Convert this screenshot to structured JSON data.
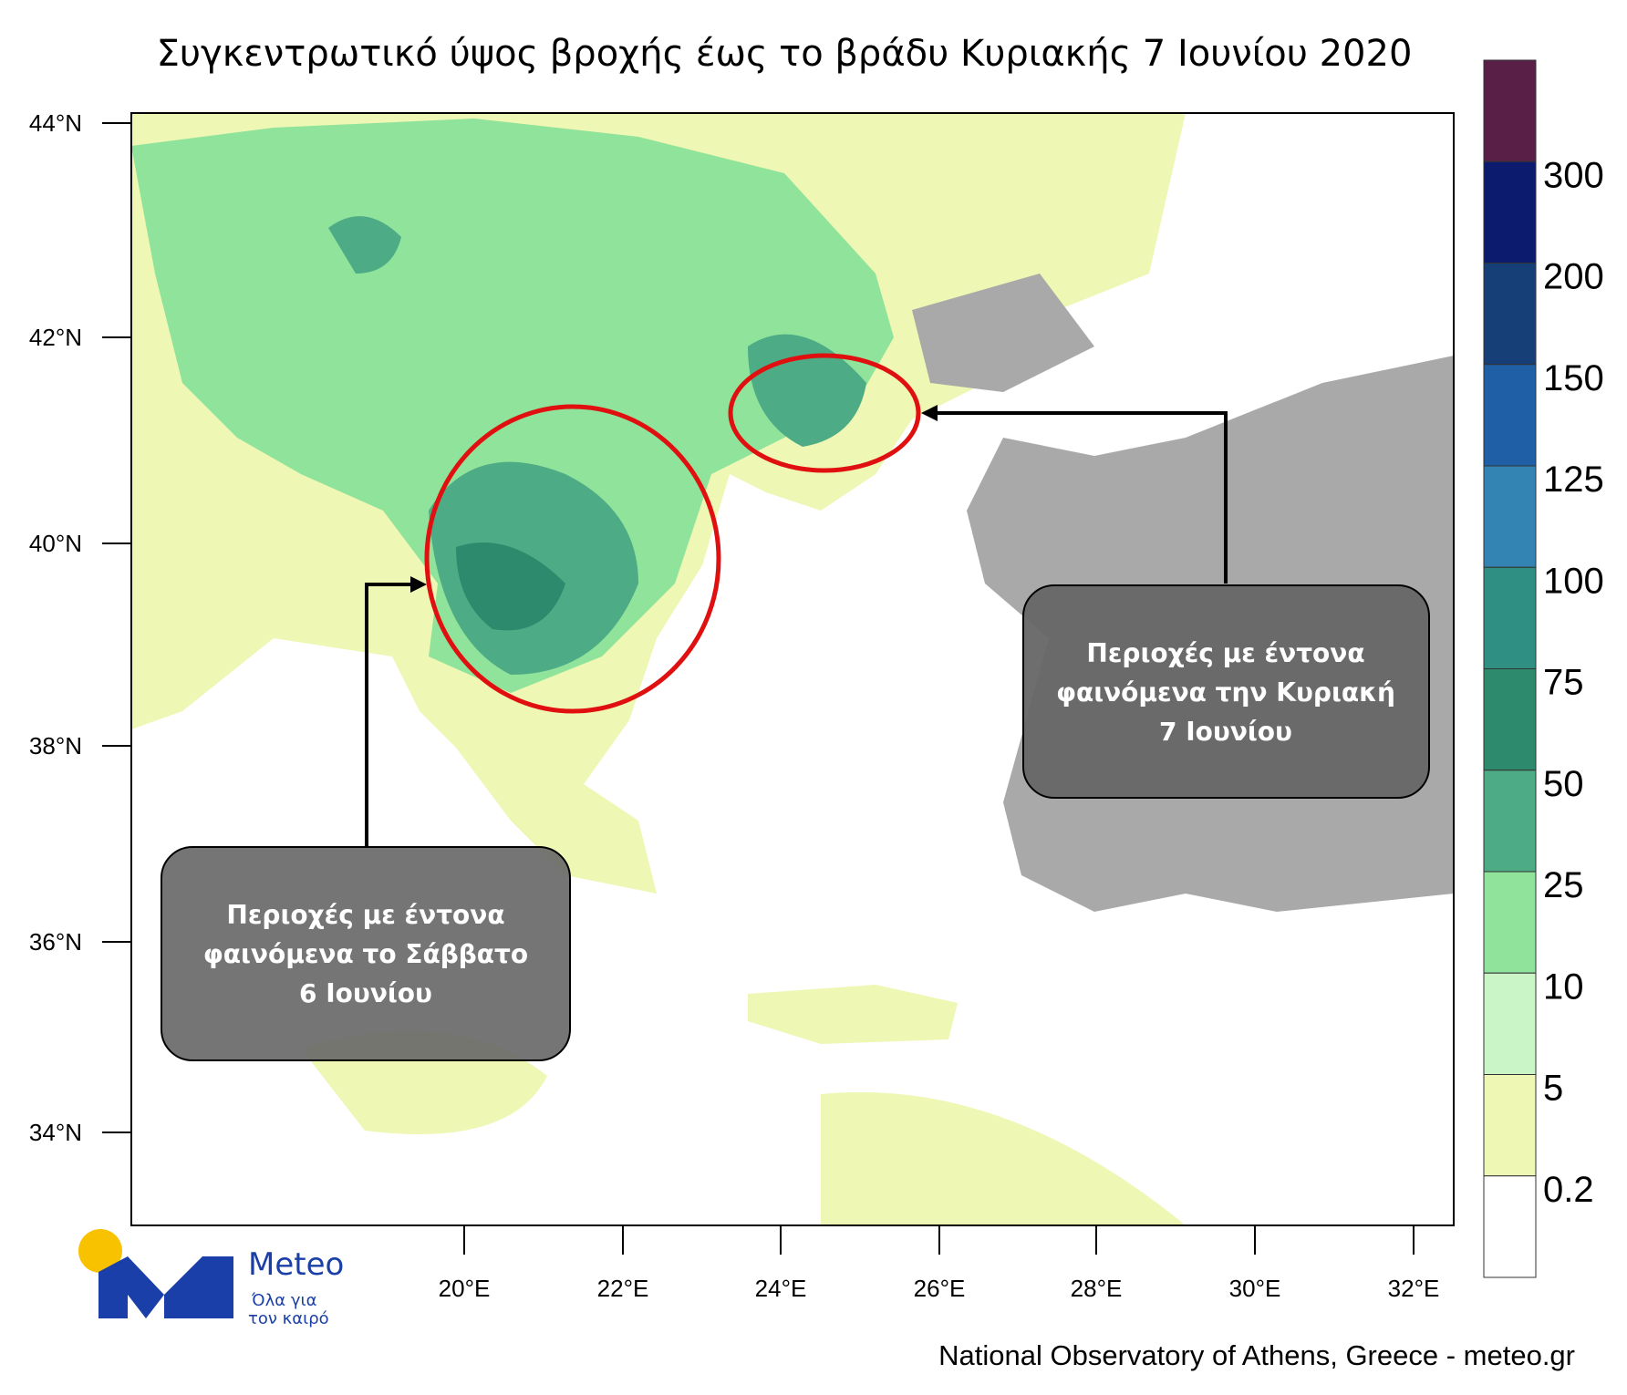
{
  "title": "Συγκεντρωτικό ύψος βροχής έως το βράδυ Κυριακής 7 Ιουνίου 2020",
  "map": {
    "lat_labels": [
      "44°N",
      "42°N",
      "40°N",
      "38°N",
      "36°N",
      "34°N"
    ],
    "lon_labels": [
      "20°E",
      "22°E",
      "24°E",
      "26°E",
      "28°E",
      "30°E",
      "32°E"
    ]
  },
  "colorbar": {
    "colors": [
      "#5a1f47",
      "#0d1b6e",
      "#163f78",
      "#1f5fa6",
      "#3484b3",
      "#2f8f82",
      "#2e8a6d",
      "#4dab85",
      "#8fe39b",
      "#c9f5c7",
      "#eef7b3",
      "#ffffff"
    ],
    "labels": [
      "300",
      "200",
      "150",
      "125",
      "100",
      "75",
      "50",
      "25",
      "10",
      "5",
      "0.2"
    ]
  },
  "annotations": [
    {
      "lines": [
        "Περιοχές με έντονα",
        "φαινόμενα  την Κυριακή",
        "7 Ιουνίου"
      ]
    },
    {
      "lines": [
        "Περιοχές με έντονα",
        "φαινόμενα  το Σάββατο",
        "6 Ιουνίου"
      ]
    }
  ],
  "logo": {
    "name": "Meteo",
    "tagline": [
      "Όλα για",
      "τον καιρό"
    ]
  },
  "credit": "National Observatory of Athens, Greece - meteo.gr"
}
